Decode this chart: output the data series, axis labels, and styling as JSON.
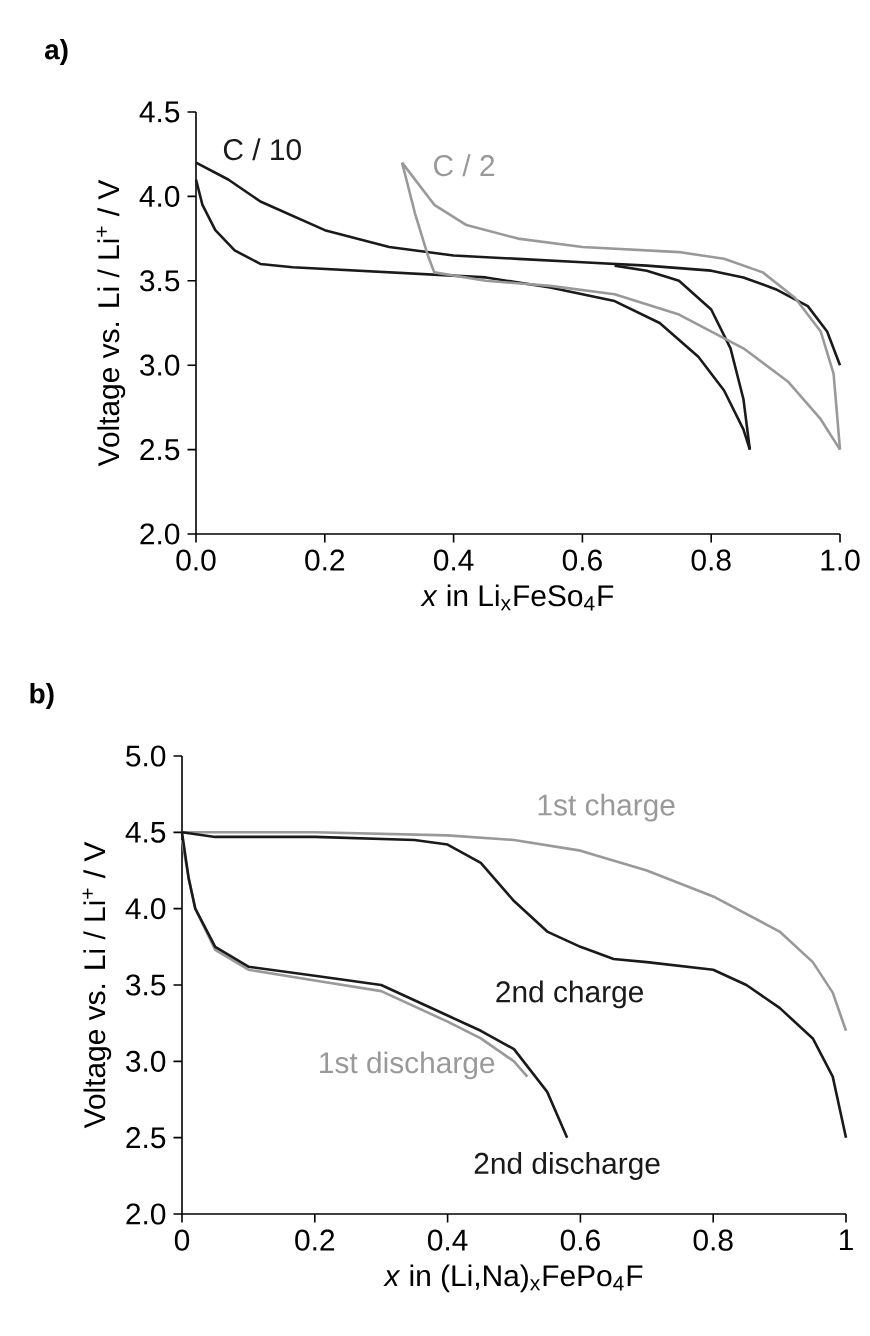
{
  "chart_data": [
    {
      "type": "line",
      "title": "a)",
      "xlabel": "*x* in Li$_{x}$FeSo$_{4}$F",
      "ylabel": "Voltage vs. Li / Li$^{+}$ / V",
      "xlim": [
        0,
        1
      ],
      "ylim": [
        2,
        4.5
      ],
      "xticks": [
        {
          "value": 0,
          "label": "0.0"
        },
        0.2,
        0.4,
        0.6,
        0.8,
        {
          "value": 1,
          "label": "1.0"
        }
      ],
      "yticks": [
        {
          "value": 2,
          "label": "2.0"
        },
        2.5,
        {
          "value": 3,
          "label": "3.0"
        },
        3.5,
        {
          "value": 4,
          "label": "4.0"
        },
        4.5
      ],
      "series": [
        {
          "name": "C / 10",
          "color": "#1a1a1a",
          "x": [
            0,
            0.05,
            0.1,
            0.2,
            0.3,
            0.4,
            0.5,
            0.6,
            0.7,
            0.8,
            0.85,
            0.9,
            0.95,
            0.98,
            1.0
          ],
          "values": [
            4.2,
            4.1,
            3.97,
            3.8,
            3.7,
            3.65,
            3.63,
            3.61,
            3.59,
            3.56,
            3.52,
            3.45,
            3.35,
            3.2,
            3.0
          ]
        },
        {
          "color": "#1a1a1a",
          "x": [
            0,
            0.01,
            0.03,
            0.06,
            0.1,
            0.15,
            0.3,
            0.45,
            0.55,
            0.65,
            0.72,
            0.78,
            0.82,
            0.85,
            0.86
          ],
          "values": [
            4.1,
            3.95,
            3.8,
            3.68,
            3.6,
            3.58,
            3.55,
            3.52,
            3.46,
            3.38,
            3.25,
            3.05,
            2.85,
            2.62,
            2.5
          ]
        },
        {
          "color": "#1a1a1a",
          "x": [
            0.65,
            0.7,
            0.75,
            0.8,
            0.83,
            0.85,
            0.86
          ],
          "values": [
            3.59,
            3.56,
            3.5,
            3.33,
            3.1,
            2.8,
            2.5
          ]
        },
        {
          "name": "C / 2",
          "color": "#999999",
          "x": [
            0.32,
            0.37,
            0.42,
            0.5,
            0.6,
            0.75,
            0.82,
            0.88,
            0.93,
            0.97,
            0.99,
            1.0
          ],
          "values": [
            4.2,
            3.95,
            3.83,
            3.75,
            3.7,
            3.67,
            3.63,
            3.55,
            3.4,
            3.2,
            2.95,
            2.5
          ]
        },
        {
          "color": "#999999",
          "x": [
            0.32,
            0.34,
            0.36,
            0.37,
            0.45,
            0.55,
            0.65,
            0.75,
            0.85,
            0.92,
            0.97,
            1.0
          ],
          "values": [
            4.2,
            3.9,
            3.65,
            3.55,
            3.5,
            3.47,
            3.42,
            3.3,
            3.1,
            2.9,
            2.68,
            2.5
          ]
        }
      ]
    },
    {
      "type": "line",
      "title": "b)",
      "xlabel": "*x* in (Li,Na)$_{x}$FePo$_{4}$F",
      "ylabel": "Voltage vs. Li / Li$^{+}$ / V",
      "xlim": [
        0,
        1
      ],
      "ylim": [
        2,
        5
      ],
      "xticks": [
        0,
        0.2,
        0.4,
        0.6,
        0.8,
        1
      ],
      "yticks": [
        {
          "value": 2,
          "label": "2.0"
        },
        2.5,
        {
          "value": 3,
          "label": "3.0"
        },
        3.5,
        {
          "value": 4,
          "label": "4.0"
        },
        4.5,
        {
          "value": 5,
          "label": "5.0"
        }
      ],
      "series": [
        {
          "name": "1st charge",
          "color": "#999999",
          "x": [
            0,
            0.2,
            0.4,
            0.5,
            0.6,
            0.7,
            0.8,
            0.9,
            0.95,
            0.98,
            1.0
          ],
          "values": [
            4.5,
            4.5,
            4.48,
            4.45,
            4.38,
            4.25,
            4.08,
            3.85,
            3.65,
            3.45,
            3.2
          ]
        },
        {
          "name": "2nd charge",
          "color": "#1a1a1a",
          "x": [
            0,
            0.05,
            0.2,
            0.35,
            0.4,
            0.45,
            0.5,
            0.55,
            0.6,
            0.65,
            0.7,
            0.8,
            0.85,
            0.9,
            0.95,
            0.98,
            1.0
          ],
          "values": [
            4.5,
            4.47,
            4.47,
            4.45,
            4.42,
            4.3,
            4.05,
            3.85,
            3.75,
            3.67,
            3.65,
            3.6,
            3.5,
            3.35,
            3.15,
            2.9,
            2.5
          ]
        },
        {
          "name": "1st discharge",
          "color": "#999999",
          "x": [
            0,
            0.01,
            0.02,
            0.05,
            0.1,
            0.2,
            0.3,
            0.4,
            0.45,
            0.5,
            0.52
          ],
          "values": [
            4.45,
            4.2,
            4.0,
            3.73,
            3.6,
            3.53,
            3.46,
            3.26,
            3.15,
            3.0,
            2.9
          ]
        },
        {
          "name": "2nd discharge",
          "color": "#1a1a1a",
          "x": [
            0,
            0.01,
            0.02,
            0.05,
            0.1,
            0.2,
            0.3,
            0.4,
            0.45,
            0.5,
            0.55,
            0.58
          ],
          "values": [
            4.5,
            4.2,
            4.0,
            3.75,
            3.62,
            3.56,
            3.5,
            3.3,
            3.2,
            3.08,
            2.8,
            2.5
          ]
        }
      ]
    }
  ]
}
